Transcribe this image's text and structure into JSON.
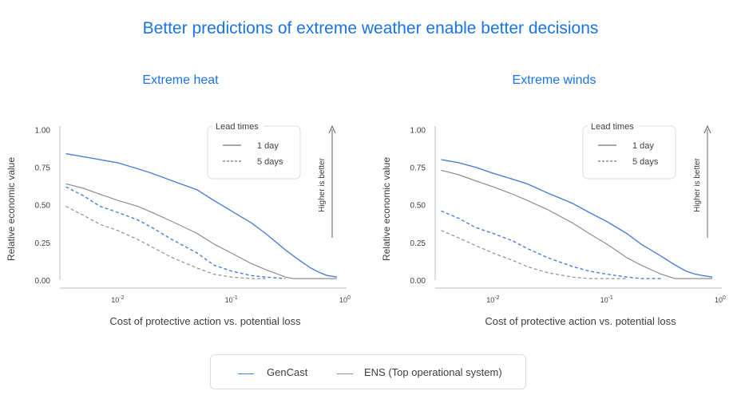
{
  "header": {
    "title": "Better predictions of extreme weather enable better decisions"
  },
  "colors": {
    "gencast": "#4a7fd6",
    "ens": "#8e8e8e",
    "axis": "#bdbdbd",
    "text": "#3c4043",
    "accent": "#1a73e8"
  },
  "legend": {
    "gencast_label": "GenCast",
    "ens_label": "ENS (Top operational system)"
  },
  "chart_data": [
    {
      "type": "line",
      "title": "Extreme heat",
      "xlabel": "Cost of protective action vs. potential loss",
      "ylabel": "Relative economic value",
      "xscale": "log",
      "xlim": [
        0.0032,
        1
      ],
      "ylim": [
        0,
        1.05
      ],
      "yticks": [
        0.0,
        0.25,
        0.5,
        0.75,
        1.0
      ],
      "ytick_labels": [
        "0.00",
        "0.25",
        "0.50",
        "0.75",
        "1.00"
      ],
      "xticks": [
        0.01,
        0.1,
        1
      ],
      "xtick_labels": [
        "10",
        "10",
        "10"
      ],
      "xtick_exponents": [
        "-2",
        "-1",
        "0"
      ],
      "annotation": "Higher is better",
      "inner_legend": {
        "title": "Lead times",
        "items": [
          "1 day",
          "5 days"
        ]
      },
      "series": [
        {
          "name": "GenCast",
          "lead": "1 day",
          "x": [
            0.0035,
            0.005,
            0.007,
            0.01,
            0.015,
            0.02,
            0.03,
            0.05,
            0.07,
            0.1,
            0.15,
            0.2,
            0.3,
            0.4,
            0.5,
            0.6,
            0.7,
            0.85
          ],
          "y": [
            0.84,
            0.82,
            0.8,
            0.78,
            0.74,
            0.71,
            0.66,
            0.6,
            0.53,
            0.46,
            0.38,
            0.31,
            0.2,
            0.13,
            0.08,
            0.05,
            0.03,
            0.02
          ]
        },
        {
          "name": "ENS",
          "lead": "1 day",
          "x": [
            0.0035,
            0.005,
            0.007,
            0.01,
            0.015,
            0.02,
            0.03,
            0.05,
            0.07,
            0.1,
            0.15,
            0.2,
            0.3,
            0.35,
            0.4,
            0.85
          ],
          "y": [
            0.64,
            0.61,
            0.57,
            0.53,
            0.49,
            0.45,
            0.39,
            0.31,
            0.24,
            0.18,
            0.11,
            0.07,
            0.02,
            0.01,
            0.01,
            0.01
          ]
        },
        {
          "name": "GenCast",
          "lead": "5 days",
          "x": [
            0.0035,
            0.005,
            0.007,
            0.01,
            0.015,
            0.02,
            0.03,
            0.05,
            0.07,
            0.1,
            0.15,
            0.2,
            0.3
          ],
          "y": [
            0.62,
            0.56,
            0.49,
            0.45,
            0.4,
            0.35,
            0.27,
            0.18,
            0.1,
            0.06,
            0.03,
            0.02,
            0.01
          ]
        },
        {
          "name": "ENS",
          "lead": "5 days",
          "x": [
            0.0035,
            0.005,
            0.007,
            0.01,
            0.015,
            0.02,
            0.03,
            0.05,
            0.07,
            0.1,
            0.15,
            0.2
          ],
          "y": [
            0.49,
            0.43,
            0.37,
            0.33,
            0.27,
            0.22,
            0.15,
            0.08,
            0.04,
            0.02,
            0.01,
            0.01
          ]
        }
      ]
    },
    {
      "type": "line",
      "title": "Extreme winds",
      "xlabel": "Cost of protective action vs. potential loss",
      "ylabel": "Relative economic value",
      "xscale": "log",
      "xlim": [
        0.0032,
        1
      ],
      "ylim": [
        0,
        1.05
      ],
      "yticks": [
        0.0,
        0.25,
        0.5,
        0.75,
        1.0
      ],
      "ytick_labels": [
        "0.00",
        "0.25",
        "0.50",
        "0.75",
        "1.00"
      ],
      "xticks": [
        0.01,
        0.1,
        1
      ],
      "xtick_labels": [
        "10",
        "10",
        "10"
      ],
      "xtick_exponents": [
        "-2",
        "-1",
        "0"
      ],
      "annotation": "Higher is better",
      "inner_legend": {
        "title": "Lead times",
        "items": [
          "1 day",
          "5 days"
        ]
      },
      "series": [
        {
          "name": "GenCast",
          "lead": "1 day",
          "x": [
            0.0035,
            0.005,
            0.007,
            0.01,
            0.015,
            0.02,
            0.03,
            0.05,
            0.07,
            0.1,
            0.15,
            0.2,
            0.3,
            0.4,
            0.5,
            0.6,
            0.7,
            0.85
          ],
          "y": [
            0.8,
            0.78,
            0.75,
            0.71,
            0.67,
            0.64,
            0.58,
            0.51,
            0.45,
            0.39,
            0.31,
            0.24,
            0.16,
            0.1,
            0.06,
            0.04,
            0.03,
            0.02
          ]
        },
        {
          "name": "ENS",
          "lead": "1 day",
          "x": [
            0.0035,
            0.005,
            0.007,
            0.01,
            0.015,
            0.02,
            0.03,
            0.05,
            0.07,
            0.1,
            0.15,
            0.2,
            0.3,
            0.4,
            0.45,
            0.85
          ],
          "y": [
            0.73,
            0.7,
            0.66,
            0.62,
            0.57,
            0.53,
            0.47,
            0.38,
            0.31,
            0.24,
            0.15,
            0.1,
            0.04,
            0.01,
            0.01,
            0.01
          ]
        },
        {
          "name": "GenCast",
          "lead": "5 days",
          "x": [
            0.0035,
            0.005,
            0.007,
            0.01,
            0.015,
            0.02,
            0.03,
            0.05,
            0.07,
            0.1,
            0.15,
            0.2,
            0.3
          ],
          "y": [
            0.46,
            0.41,
            0.35,
            0.31,
            0.26,
            0.21,
            0.15,
            0.09,
            0.06,
            0.04,
            0.02,
            0.01,
            0.01
          ]
        },
        {
          "name": "ENS",
          "lead": "5 days",
          "x": [
            0.0035,
            0.005,
            0.007,
            0.01,
            0.015,
            0.02,
            0.03,
            0.05,
            0.07,
            0.1,
            0.15
          ],
          "y": [
            0.33,
            0.28,
            0.23,
            0.18,
            0.13,
            0.09,
            0.05,
            0.02,
            0.01,
            0.01,
            0.01
          ]
        }
      ]
    }
  ]
}
